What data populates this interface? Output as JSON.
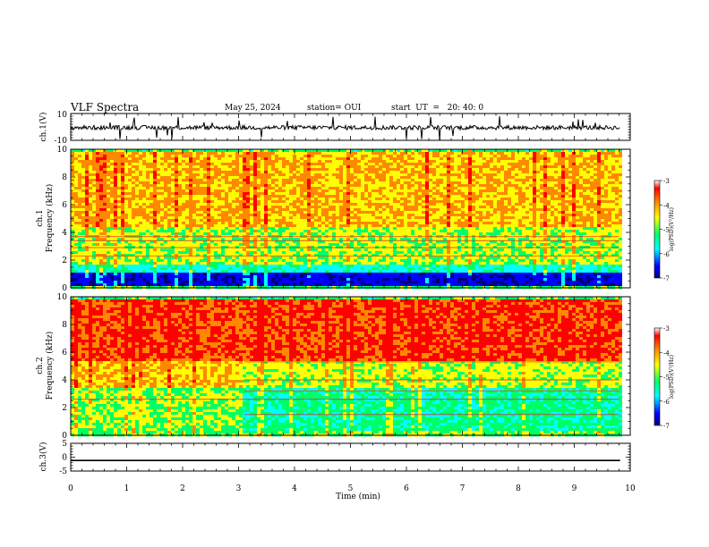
{
  "header": {
    "title": "VLF Spectra",
    "date": "May 25, 2024",
    "station": "station= OUI",
    "start": "start  UT  =   20: 40: 0"
  },
  "colors": {
    "trace": "#000000",
    "colormap": [
      "#000080",
      "#0000ff",
      "#00ffff",
      "#00ff66",
      "#ffff00",
      "#ff8800",
      "#ff0000",
      "#ffffff"
    ]
  },
  "chart_data": [
    {
      "type": "line",
      "panel": "ch1-waveform",
      "ylabel": "ch.1(V)",
      "ylim": [
        -10,
        10
      ],
      "y_tick_labels": [
        "10",
        "-10"
      ],
      "description_values": {
        "baseline": -0.5,
        "noise_amplitude": 2,
        "spike_max": 8,
        "spike_min": -10
      },
      "xlim": [
        0,
        10
      ]
    },
    {
      "type": "heatmap",
      "panel": "ch1-spectrogram",
      "ylabel": "ch.1\nFrequency (kHz)",
      "ylabel_lines": [
        "ch.1",
        "Frequency (kHz)"
      ],
      "ylim": [
        0,
        10
      ],
      "y_tick_labels": [
        "0",
        "2",
        "4",
        "6",
        "8",
        "10"
      ],
      "xlim": [
        0,
        10
      ],
      "data_end_min": 9.8,
      "colorbar": {
        "label": "log(PSD)(V²/Hz)",
        "range": [
          -7,
          -3
        ],
        "tick_labels": [
          "-3",
          "-4",
          "-5",
          "-6",
          "-7"
        ]
      },
      "bands": [
        {
          "f_low": 0,
          "f_high": 0.3,
          "level": -5
        },
        {
          "f_low": 0.3,
          "f_high": 1.1,
          "level": -6.5
        },
        {
          "f_low": 1.1,
          "f_high": 1.8,
          "level": -5.5
        },
        {
          "f_low": 1.8,
          "f_high": 4.5,
          "level": -4.6
        },
        {
          "f_low": 4.5,
          "f_high": 10,
          "level": -4.0
        }
      ],
      "tones_khz": [
        3.4,
        2.3,
        2.9,
        3.7
      ]
    },
    {
      "type": "heatmap",
      "panel": "ch2-spectrogram",
      "ylabel": "ch.2\nFrequency (kHz)",
      "ylabel_lines": [
        "ch.2",
        "Frequency (kHz)"
      ],
      "ylim": [
        0,
        10
      ],
      "y_tick_labels": [
        "0",
        "2",
        "4",
        "6",
        "8",
        "10"
      ],
      "xlim": [
        0,
        10
      ],
      "data_end_min": 9.8,
      "colorbar": {
        "label": "log(PSD)(V²/Hz)",
        "range": [
          -7,
          -3
        ],
        "tick_labels": [
          "-3",
          "-4",
          "-5",
          "-6",
          "-7"
        ]
      },
      "bands": [
        {
          "f_low": 0,
          "f_high": 0.4,
          "level": -4.8
        },
        {
          "f_low": 0.4,
          "f_high": 3.5,
          "level": -5.2
        },
        {
          "f_low": 3.5,
          "f_high": 5.5,
          "level": -4.5
        },
        {
          "f_low": 5.5,
          "f_high": 10,
          "level": -3.3
        }
      ],
      "tones_khz": [
        2.6,
        3.2,
        4.0,
        5.3,
        1.5
      ]
    },
    {
      "type": "line",
      "panel": "ch3-waveform",
      "ylabel": "ch.3(V)",
      "ylim": [
        -5,
        5
      ],
      "y_tick_labels": [
        "5",
        "0",
        "-5"
      ],
      "xlim": [
        0,
        10
      ],
      "constant_value": -1.2,
      "xlabel": "Time (min)",
      "x_tick_labels": [
        "0",
        "1",
        "2",
        "3",
        "4",
        "5",
        "6",
        "7",
        "8",
        "9",
        "10"
      ]
    }
  ]
}
